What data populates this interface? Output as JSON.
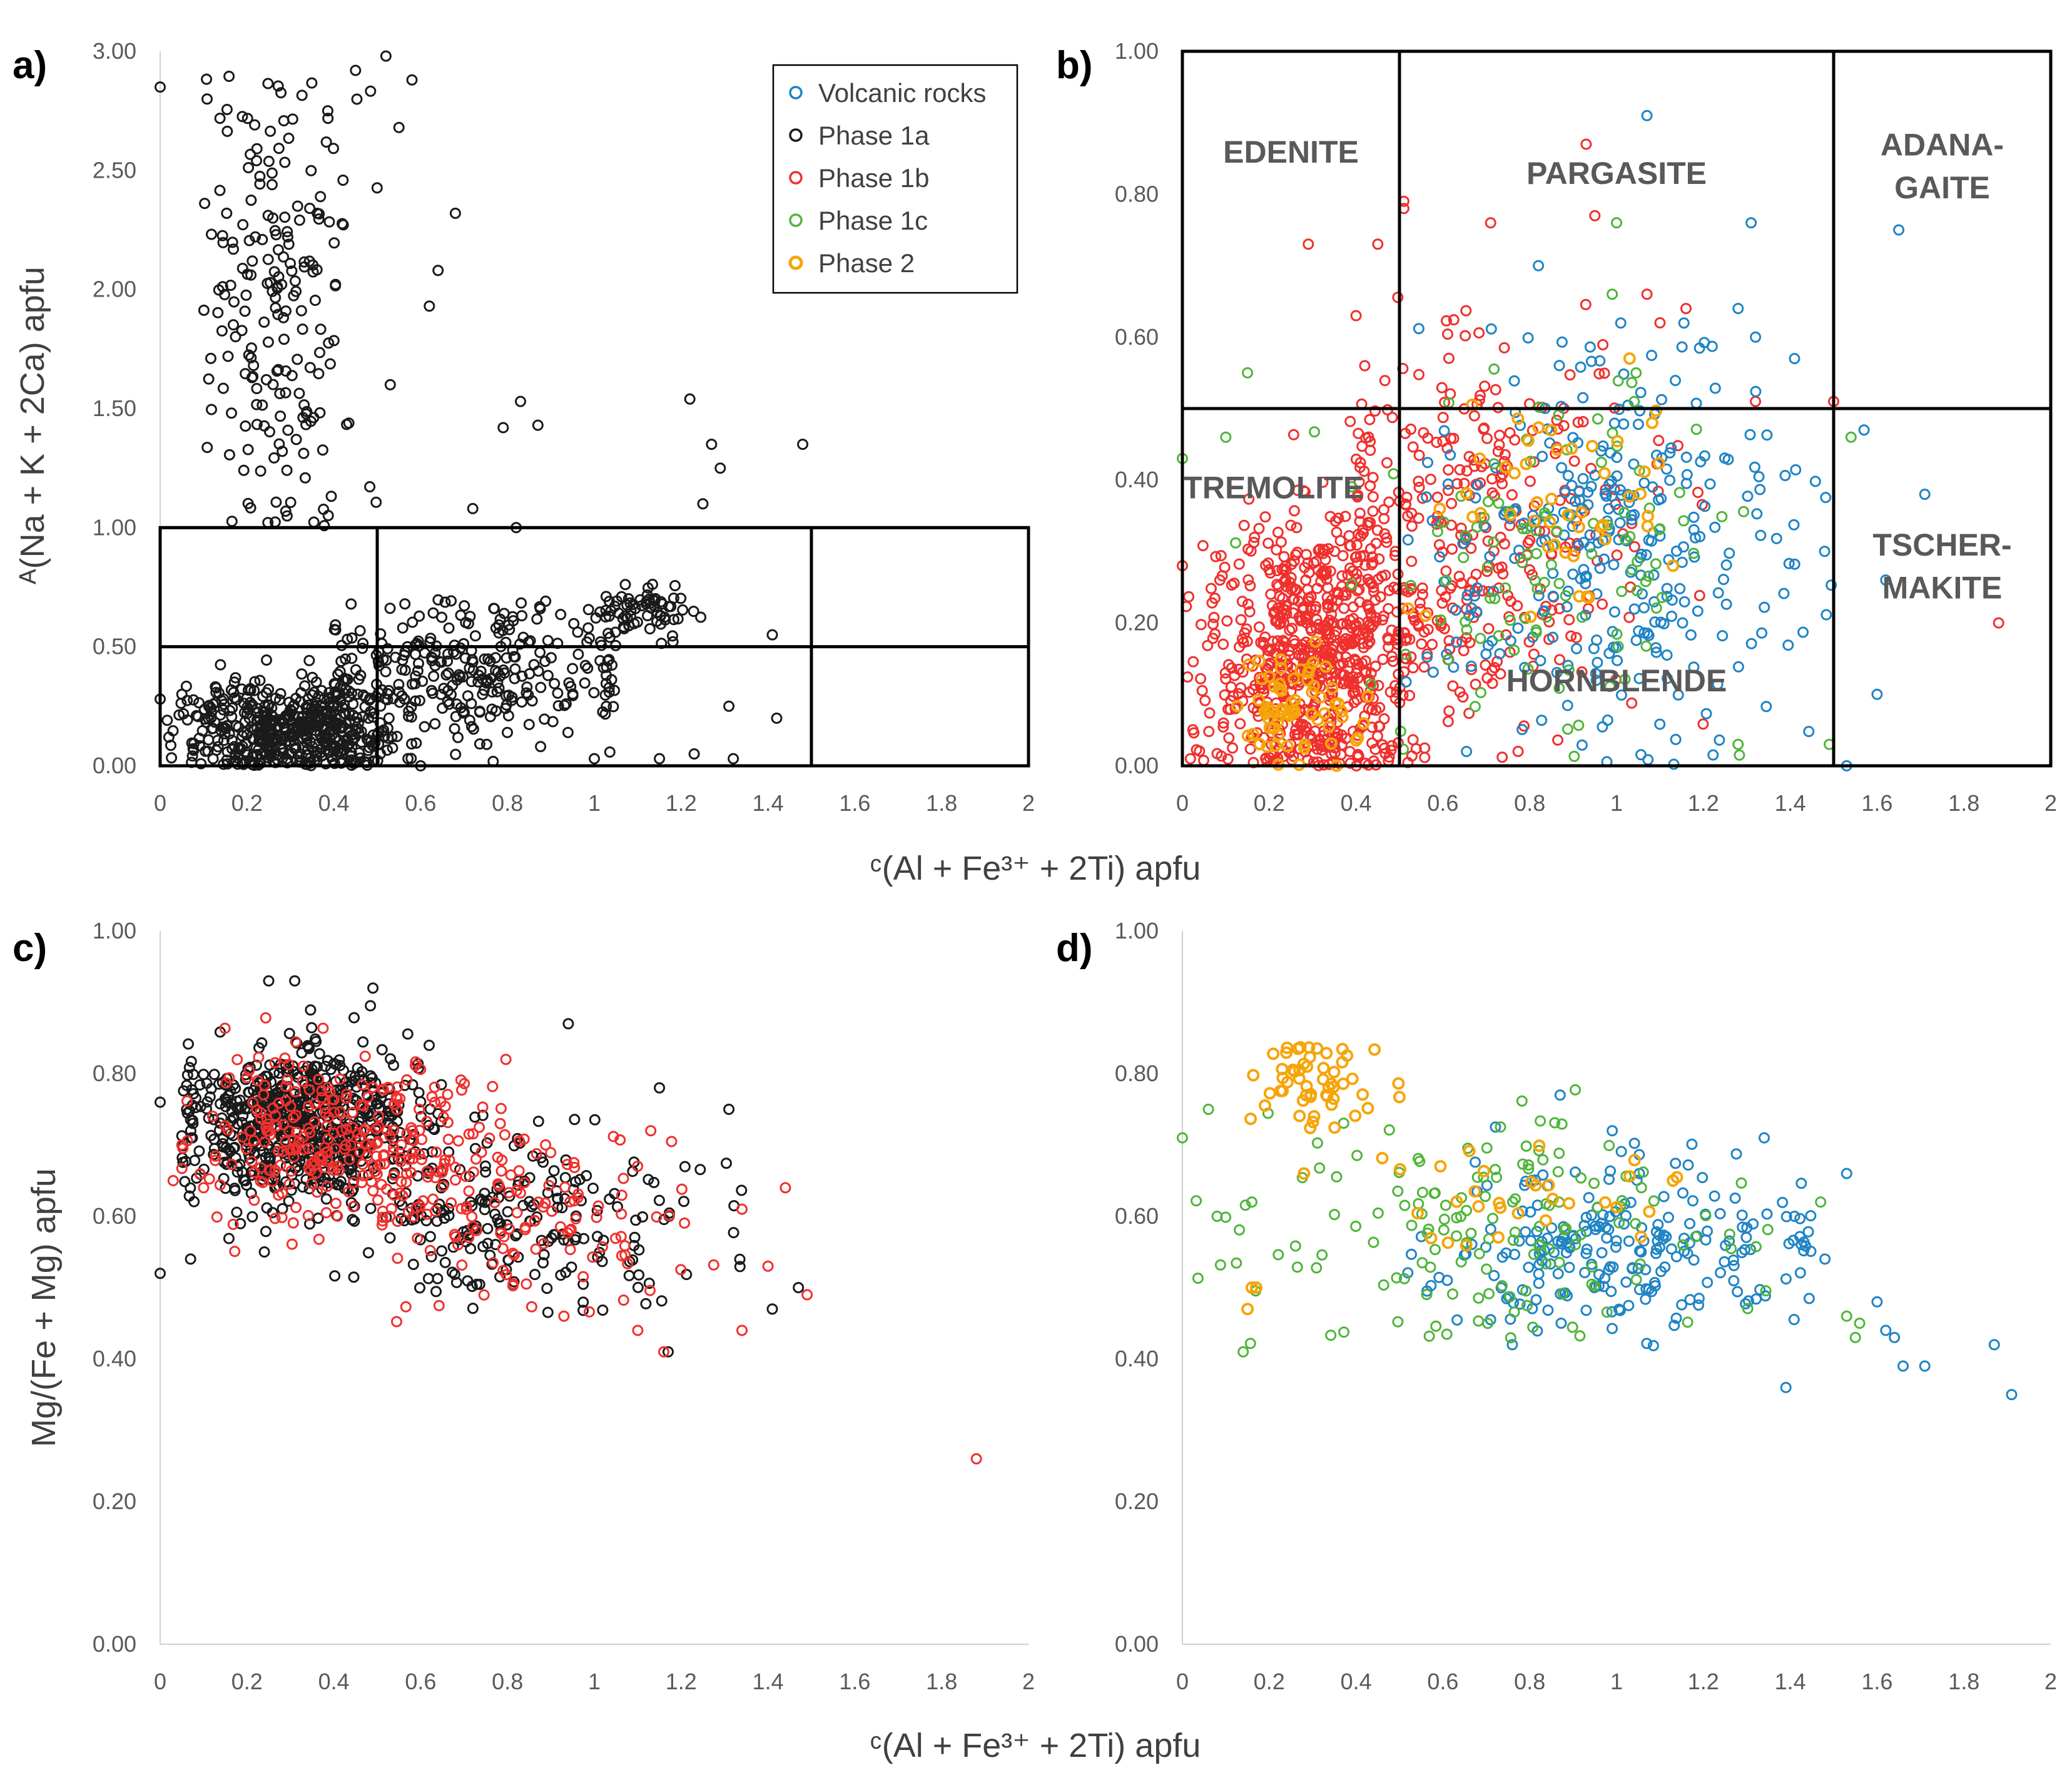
{
  "figure": {
    "xlabel": "ᶜ(Al + Fe³⁺ + 2Ti) apfu",
    "ylabel_ab": "ᴬ(Na + K + 2Ca) apfu",
    "ylabel_cd": "Mg/(Fe + Mg)  apfu"
  },
  "series_styles": [
    {
      "name": "Volcanic rocks",
      "color": "#1f84c4"
    },
    {
      "name": "Phase 1a",
      "color": "#1a1a1a"
    },
    {
      "name": "Phase 1b",
      "color": "#f0302d"
    },
    {
      "name": "Phase 1c",
      "color": "#4fb53a"
    },
    {
      "name": "Phase 2",
      "color": "#f5a50a"
    }
  ],
  "chart_data": [
    {
      "panel": "a)",
      "type": "scatter",
      "xlabel": "ᶜ(Al + Fe³⁺ + 2Ti) apfu",
      "ylabel": "ᴬ(Na + K + 2Ca) apfu",
      "xlim": [
        0,
        2
      ],
      "ylim": [
        0,
        3
      ],
      "xticks": [
        "0",
        "0.2",
        "0.4",
        "0.6",
        "0.8",
        "1",
        "1.2",
        "1.4",
        "1.6",
        "1.8",
        "2"
      ],
      "yticks": [
        "0.00",
        "0.50",
        "1.00",
        "1.50",
        "2.00",
        "2.50",
        "3.00"
      ],
      "legend": [
        "Volcanic rocks",
        "Phase 1a",
        "Phase 1b",
        "Phase 1c",
        "Phase 2"
      ],
      "legend_position": "top-right",
      "boundary_lines": [
        {
          "x": [
            0,
            2
          ],
          "y": [
            1.0,
            1.0
          ]
        },
        {
          "x": [
            0,
            2
          ],
          "y": [
            0.5,
            0.5
          ]
        },
        {
          "x": [
            0.5,
            0.5
          ],
          "y": [
            0,
            1.0
          ]
        },
        {
          "x": [
            1.5,
            1.5
          ],
          "y": [
            0,
            1.0
          ]
        }
      ],
      "fields": [],
      "series": [
        {
          "name": "Phase 1a",
          "clusters": [
            {
              "n": 200,
              "cx": 0.27,
              "cy": 2.0,
              "sx": 0.09,
              "sy": 0.55,
              "xmin": 0.1,
              "xmax": 0.5,
              "ymin": 1.0,
              "ymax": 2.9
            },
            {
              "n": 500,
              "cx": 0.3,
              "cy": 0.15,
              "sx": 0.12,
              "sy": 0.1,
              "xmin": 0.0,
              "xmax": 0.6,
              "ymin": 0.0,
              "ymax": 0.6
            },
            {
              "n": 300,
              "cx": 0.7,
              "cy": 0.4,
              "sx": 0.2,
              "sy": 0.15,
              "xmin": 0.4,
              "xmax": 1.05,
              "ymin": 0.0,
              "ymax": 0.7
            },
            {
              "n": 70,
              "cx": 1.12,
              "cy": 0.65,
              "sx": 0.06,
              "sy": 0.05,
              "xmin": 0.95,
              "xmax": 1.28,
              "ymin": 0.5,
              "ymax": 0.8
            }
          ],
          "points": [
            [
              0.0,
              2.85
            ],
            [
              0.52,
              2.98
            ],
            [
              0.58,
              2.88
            ],
            [
              0.45,
              2.92
            ],
            [
              0.55,
              2.68
            ],
            [
              0.68,
              2.32
            ],
            [
              0.64,
              2.08
            ],
            [
              0.62,
              1.93
            ],
            [
              0.53,
              1.6
            ],
            [
              0.83,
              1.53
            ],
            [
              0.87,
              1.43
            ],
            [
              0.79,
              1.42
            ],
            [
              1.22,
              1.54
            ],
            [
              1.27,
              1.35
            ],
            [
              1.48,
              1.35
            ],
            [
              1.29,
              1.25
            ],
            [
              1.25,
              1.1
            ],
            [
              0.72,
              1.08
            ],
            [
              0.82,
              1.0
            ],
            [
              0.05,
              0.3
            ],
            [
              0.0,
              0.28
            ],
            [
              1.41,
              0.55
            ],
            [
              1.31,
              0.25
            ],
            [
              1.42,
              0.2
            ],
            [
              1.32,
              0.03
            ],
            [
              1.23,
              0.05
            ],
            [
              1.15,
              0.03
            ],
            [
              1.0,
              0.03
            ],
            [
              0.6,
              0.0
            ],
            [
              0.02,
              0.12
            ]
          ]
        }
      ]
    },
    {
      "panel": "b)",
      "type": "scatter",
      "xlabel": "ᶜ(Al + Fe³⁺ + 2Ti) apfu",
      "ylabel": "ᴬ(Na + K + 2Ca) apfu",
      "xlim": [
        0,
        2
      ],
      "ylim": [
        0,
        1
      ],
      "xticks": [
        "0",
        "0.2",
        "0.4",
        "0.6",
        "0.8",
        "1",
        "1.2",
        "1.4",
        "1.6",
        "1.8",
        "2"
      ],
      "yticks": [
        "0.00",
        "0.20",
        "0.40",
        "0.60",
        "0.80",
        "1.00"
      ],
      "legend": [],
      "boundary_lines": [
        {
          "x": [
            0,
            2
          ],
          "y": [
            0.5,
            0.5
          ]
        },
        {
          "x": [
            0.5,
            0.5
          ],
          "y": [
            0,
            1
          ]
        },
        {
          "x": [
            1.5,
            1.5
          ],
          "y": [
            0,
            1
          ]
        }
      ],
      "fields": [
        {
          "label": "EDENITE",
          "x": 0.25,
          "y": 0.86
        },
        {
          "label": "PARGASITE",
          "x": 1.0,
          "y": 0.83
        },
        {
          "label": "ADANA-",
          "x": 1.75,
          "y": 0.87
        },
        {
          "label": "GAITE",
          "x": 1.75,
          "y": 0.81
        },
        {
          "label": "TREMOLITE",
          "x": 0.21,
          "y": 0.39
        },
        {
          "label": "HORNBLENDE",
          "x": 1.0,
          "y": 0.12
        },
        {
          "label": "TSCHER-",
          "x": 1.75,
          "y": 0.31
        },
        {
          "label": "MAKITE",
          "x": 1.75,
          "y": 0.25
        }
      ],
      "series": [
        {
          "name": "Phase 1b",
          "clusters": [
            {
              "n": 700,
              "cx": 0.3,
              "cy": 0.15,
              "sx": 0.13,
              "sy": 0.1,
              "xmin": 0.0,
              "xmax": 0.62,
              "ymin": 0.0,
              "ymax": 0.5
            },
            {
              "n": 320,
              "cx": 0.68,
              "cy": 0.32,
              "sx": 0.2,
              "sy": 0.14,
              "xmin": 0.4,
              "xmax": 1.2,
              "ymin": 0.0,
              "ymax": 0.66
            }
          ],
          "points": [
            [
              0.29,
              0.73
            ],
            [
              0.45,
              0.73
            ],
            [
              0.51,
              0.79
            ],
            [
              0.51,
              0.78
            ],
            [
              0.71,
              0.76
            ],
            [
              0.93,
              0.87
            ],
            [
              0.95,
              0.77
            ],
            [
              0.4,
              0.63
            ],
            [
              0.42,
              0.56
            ],
            [
              1.07,
              0.66
            ],
            [
              1.16,
              0.64
            ],
            [
              0.0,
              0.28
            ],
            [
              1.88,
              0.2
            ],
            [
              1.32,
              0.51
            ],
            [
              1.5,
              0.51
            ],
            [
              1.1,
              0.62
            ]
          ]
        },
        {
          "name": "Volcanic rocks",
          "clusters": [
            {
              "n": 300,
              "cx": 1.0,
              "cy": 0.3,
              "sx": 0.22,
              "sy": 0.14,
              "xmin": 0.5,
              "xmax": 1.5,
              "ymin": 0.0,
              "ymax": 0.62
            }
          ],
          "points": [
            [
              1.07,
              0.91
            ],
            [
              1.31,
              0.76
            ],
            [
              1.65,
              0.75
            ],
            [
              1.41,
              0.57
            ],
            [
              1.32,
              0.6
            ],
            [
              1.28,
              0.64
            ],
            [
              0.82,
              0.7
            ],
            [
              1.71,
              0.38
            ],
            [
              1.57,
              0.47
            ],
            [
              1.6,
              0.1
            ],
            [
              1.62,
              0.26
            ],
            [
              1.53,
              0.0
            ]
          ]
        },
        {
          "name": "Phase 1c",
          "clusters": [
            {
              "n": 110,
              "cx": 0.85,
              "cy": 0.3,
              "sx": 0.22,
              "sy": 0.13,
              "xmin": 0.1,
              "xmax": 1.4,
              "ymin": 0.0,
              "ymax": 0.58
            }
          ],
          "points": [
            [
              0.15,
              0.55
            ],
            [
              0.0,
              0.43
            ],
            [
              0.1,
              0.46
            ],
            [
              1.0,
              0.76
            ],
            [
              0.99,
              0.66
            ],
            [
              1.54,
              0.46
            ],
            [
              1.49,
              0.03
            ],
            [
              1.28,
              0.03
            ]
          ]
        },
        {
          "name": "Phase 2",
          "clusters": [
            {
              "n": 70,
              "cx": 0.27,
              "cy": 0.08,
              "sx": 0.07,
              "sy": 0.04,
              "xmin": 0.12,
              "xmax": 0.45,
              "ymin": 0.0,
              "ymax": 0.18
            },
            {
              "n": 45,
              "cx": 0.85,
              "cy": 0.38,
              "sx": 0.14,
              "sy": 0.07,
              "xmin": 0.5,
              "xmax": 1.1,
              "ymin": 0.2,
              "ymax": 0.55
            }
          ],
          "points": [
            [
              1.03,
              0.57
            ],
            [
              0.52,
              0.22
            ],
            [
              0.56,
              0.21
            ],
            [
              1.13,
              0.28
            ]
          ]
        }
      ]
    },
    {
      "panel": "c)",
      "type": "scatter",
      "xlabel": "ᶜ(Al + Fe³⁺ + 2Ti) apfu",
      "ylabel": "Mg/(Fe + Mg)  apfu",
      "xlim": [
        0,
        2
      ],
      "ylim": [
        0,
        1
      ],
      "xticks": [
        "0",
        "0.2",
        "0.4",
        "0.6",
        "0.8",
        "1",
        "1.2",
        "1.4",
        "1.6",
        "1.8",
        "2"
      ],
      "yticks": [
        "0.00",
        "0.20",
        "0.40",
        "0.60",
        "0.80",
        "1.00"
      ],
      "legend": [],
      "boundary_lines": [],
      "fields": [],
      "series": [
        {
          "name": "Phase 1a",
          "clusters": [
            {
              "n": 650,
              "cx": 0.32,
              "cy": 0.73,
              "sx": 0.13,
              "sy": 0.055,
              "xmin": 0.05,
              "xmax": 0.7,
              "ymin": 0.55,
              "ymax": 0.93
            },
            {
              "n": 220,
              "cx": 0.82,
              "cy": 0.6,
              "sx": 0.22,
              "sy": 0.06,
              "xmin": 0.4,
              "xmax": 1.35,
              "ymin": 0.46,
              "ymax": 0.75
            }
          ],
          "points": [
            [
              0.0,
              0.52
            ],
            [
              0.0,
              0.76
            ],
            [
              0.07,
              0.54
            ],
            [
              0.25,
              0.93
            ],
            [
              0.31,
              0.93
            ],
            [
              0.49,
              0.92
            ],
            [
              0.94,
              0.87
            ],
            [
              1.15,
              0.78
            ],
            [
              1.31,
              0.75
            ],
            [
              1.41,
              0.47
            ],
            [
              1.47,
              0.5
            ],
            [
              1.17,
              0.41
            ],
            [
              0.24,
              0.55
            ]
          ]
        },
        {
          "name": "Phase 1b",
          "clusters": [
            {
              "n": 280,
              "cx": 0.42,
              "cy": 0.71,
              "sx": 0.16,
              "sy": 0.06,
              "xmin": 0.05,
              "xmax": 0.8,
              "ymin": 0.55,
              "ymax": 0.88
            },
            {
              "n": 120,
              "cx": 0.85,
              "cy": 0.6,
              "sx": 0.2,
              "sy": 0.06,
              "xmin": 0.5,
              "xmax": 1.3,
              "ymin": 0.45,
              "ymax": 0.72
            }
          ],
          "points": [
            [
              0.03,
              0.65
            ],
            [
              0.05,
              0.7
            ],
            [
              0.1,
              0.64
            ],
            [
              1.88,
              0.26
            ],
            [
              1.49,
              0.49
            ],
            [
              1.44,
              0.64
            ],
            [
              1.34,
              0.61
            ],
            [
              1.4,
              0.53
            ],
            [
              1.34,
              0.44
            ],
            [
              1.16,
              0.41
            ],
            [
              1.1,
              0.44
            ],
            [
              1.13,
              0.72
            ],
            [
              0.93,
              0.46
            ]
          ]
        }
      ]
    },
    {
      "panel": "d)",
      "type": "scatter",
      "xlabel": "ᶜ(Al + Fe³⁺ + 2Ti) apfu",
      "ylabel": "Mg/(Fe + Mg)  apfu",
      "xlim": [
        0,
        2
      ],
      "ylim": [
        0,
        1
      ],
      "xticks": [
        "0",
        "0.2",
        "0.4",
        "0.6",
        "0.8",
        "1",
        "1.2",
        "1.4",
        "1.6",
        "1.8",
        "2"
      ],
      "yticks": [
        "0.00",
        "0.20",
        "0.40",
        "0.60",
        "0.80",
        "1.00"
      ],
      "legend": [],
      "boundary_lines": [],
      "fields": [],
      "series": [
        {
          "name": "Volcanic rocks",
          "clusters": [
            {
              "n": 230,
              "cx": 1.0,
              "cy": 0.56,
              "sx": 0.22,
              "sy": 0.06,
              "xmin": 0.5,
              "xmax": 1.45,
              "ymin": 0.4,
              "ymax": 0.75
            }
          ],
          "points": [
            [
              1.34,
              0.71
            ],
            [
              1.53,
              0.66
            ],
            [
              1.41,
              0.6
            ],
            [
              1.48,
              0.54
            ],
            [
              1.6,
              0.48
            ],
            [
              1.62,
              0.44
            ],
            [
              1.64,
              0.43
            ],
            [
              1.66,
              0.39
            ],
            [
              1.71,
              0.39
            ],
            [
              1.87,
              0.42
            ],
            [
              1.91,
              0.35
            ],
            [
              1.39,
              0.36
            ],
            [
              0.76,
              0.42
            ],
            [
              0.87,
              0.77
            ],
            [
              0.99,
              0.72
            ]
          ]
        },
        {
          "name": "Phase 1c",
          "clusters": [
            {
              "n": 150,
              "cx": 0.75,
              "cy": 0.58,
              "sx": 0.3,
              "sy": 0.08,
              "xmin": 0.0,
              "xmax": 1.35,
              "ymin": 0.42,
              "ymax": 0.78
            }
          ],
          "points": [
            [
              0.0,
              0.71
            ],
            [
              0.06,
              0.75
            ],
            [
              0.08,
              0.6
            ],
            [
              0.14,
              0.41
            ],
            [
              0.16,
              0.62
            ],
            [
              1.53,
              0.46
            ],
            [
              1.55,
              0.43
            ],
            [
              1.56,
              0.45
            ],
            [
              1.47,
              0.62
            ]
          ]
        },
        {
          "name": "Phase 2",
          "clusters": [
            {
              "n": 55,
              "cx": 0.3,
              "cy": 0.79,
              "sx": 0.08,
              "sy": 0.03,
              "xmin": 0.15,
              "xmax": 0.5,
              "ymin": 0.72,
              "ymax": 0.84
            },
            {
              "n": 30,
              "cx": 0.8,
              "cy": 0.63,
              "sx": 0.18,
              "sy": 0.04,
              "xmin": 0.45,
              "xmax": 1.15,
              "ymin": 0.55,
              "ymax": 0.7
            }
          ],
          "points": [
            [
              0.16,
              0.5
            ],
            [
              0.15,
              0.47
            ],
            [
              0.17,
              0.5
            ],
            [
              0.28,
              0.66
            ],
            [
              1.13,
              0.65
            ]
          ]
        }
      ]
    }
  ]
}
